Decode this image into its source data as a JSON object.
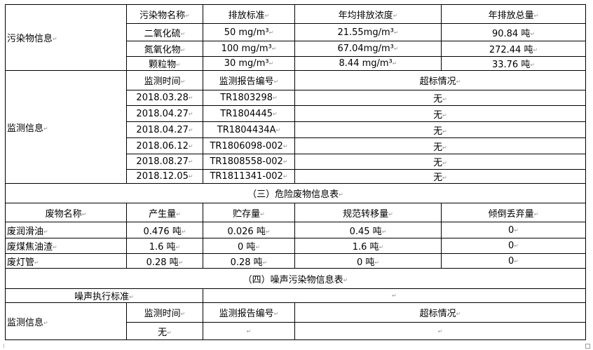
{
  "pollutant": {
    "section_label": "污染物信息",
    "headers": [
      "污染物名称",
      "排放标准",
      "年均排放浓度",
      "年排放总量"
    ],
    "rows": [
      [
        "二氧化硫",
        "50 mg/m³",
        "21.55mg/m³",
        "90.84 吨"
      ],
      [
        "氮氧化物",
        "100 mg/m³",
        "67.04mg/m³",
        "272.44 吨"
      ],
      [
        "颗粒物",
        "30 mg/m³",
        "8.44 mg/m³",
        "33.76 吨"
      ]
    ]
  },
  "monitoring": {
    "section_label": "监测信息",
    "headers": [
      "监测时间",
      "监测报告编号",
      "超标情况"
    ],
    "rows": [
      [
        "2018.03.28",
        "TR1803298",
        "无"
      ],
      [
        "2018.04.27",
        "TR1804445",
        "无"
      ],
      [
        "2018.04.27",
        "TR1804434A",
        "无"
      ],
      [
        "2018.06.12",
        "TR1806098-002",
        "无"
      ],
      [
        "2018.08.27",
        "TR1808558-002",
        "无"
      ],
      [
        "2018.12.05",
        "TR1811341-002",
        "无"
      ]
    ]
  },
  "hazardous": {
    "title": "（三）危险废物信息表",
    "headers": [
      "废物名称",
      "产生量",
      "贮存量",
      "规范转移量",
      "倾倒丢弃量"
    ],
    "rows": [
      [
        "废润滑油",
        "0.476 吨",
        "0.026 吨",
        "0.45 吨",
        "0"
      ],
      [
        "废煤焦油渣",
        "1.6 吨",
        "0 吨",
        "1.6 吨",
        "0"
      ],
      [
        "废灯管",
        "0.28 吨",
        "0.28 吨",
        "0 吨",
        "0"
      ]
    ]
  },
  "noise": {
    "title": "（四）噪声污染物信息表",
    "standard_label": "噪声执行标准",
    "standard_value": "",
    "section_label": "监测信息",
    "headers": [
      "监测时间",
      "监测报告编号",
      "超标情况"
    ],
    "row": [
      "无",
      "",
      ""
    ]
  }
}
